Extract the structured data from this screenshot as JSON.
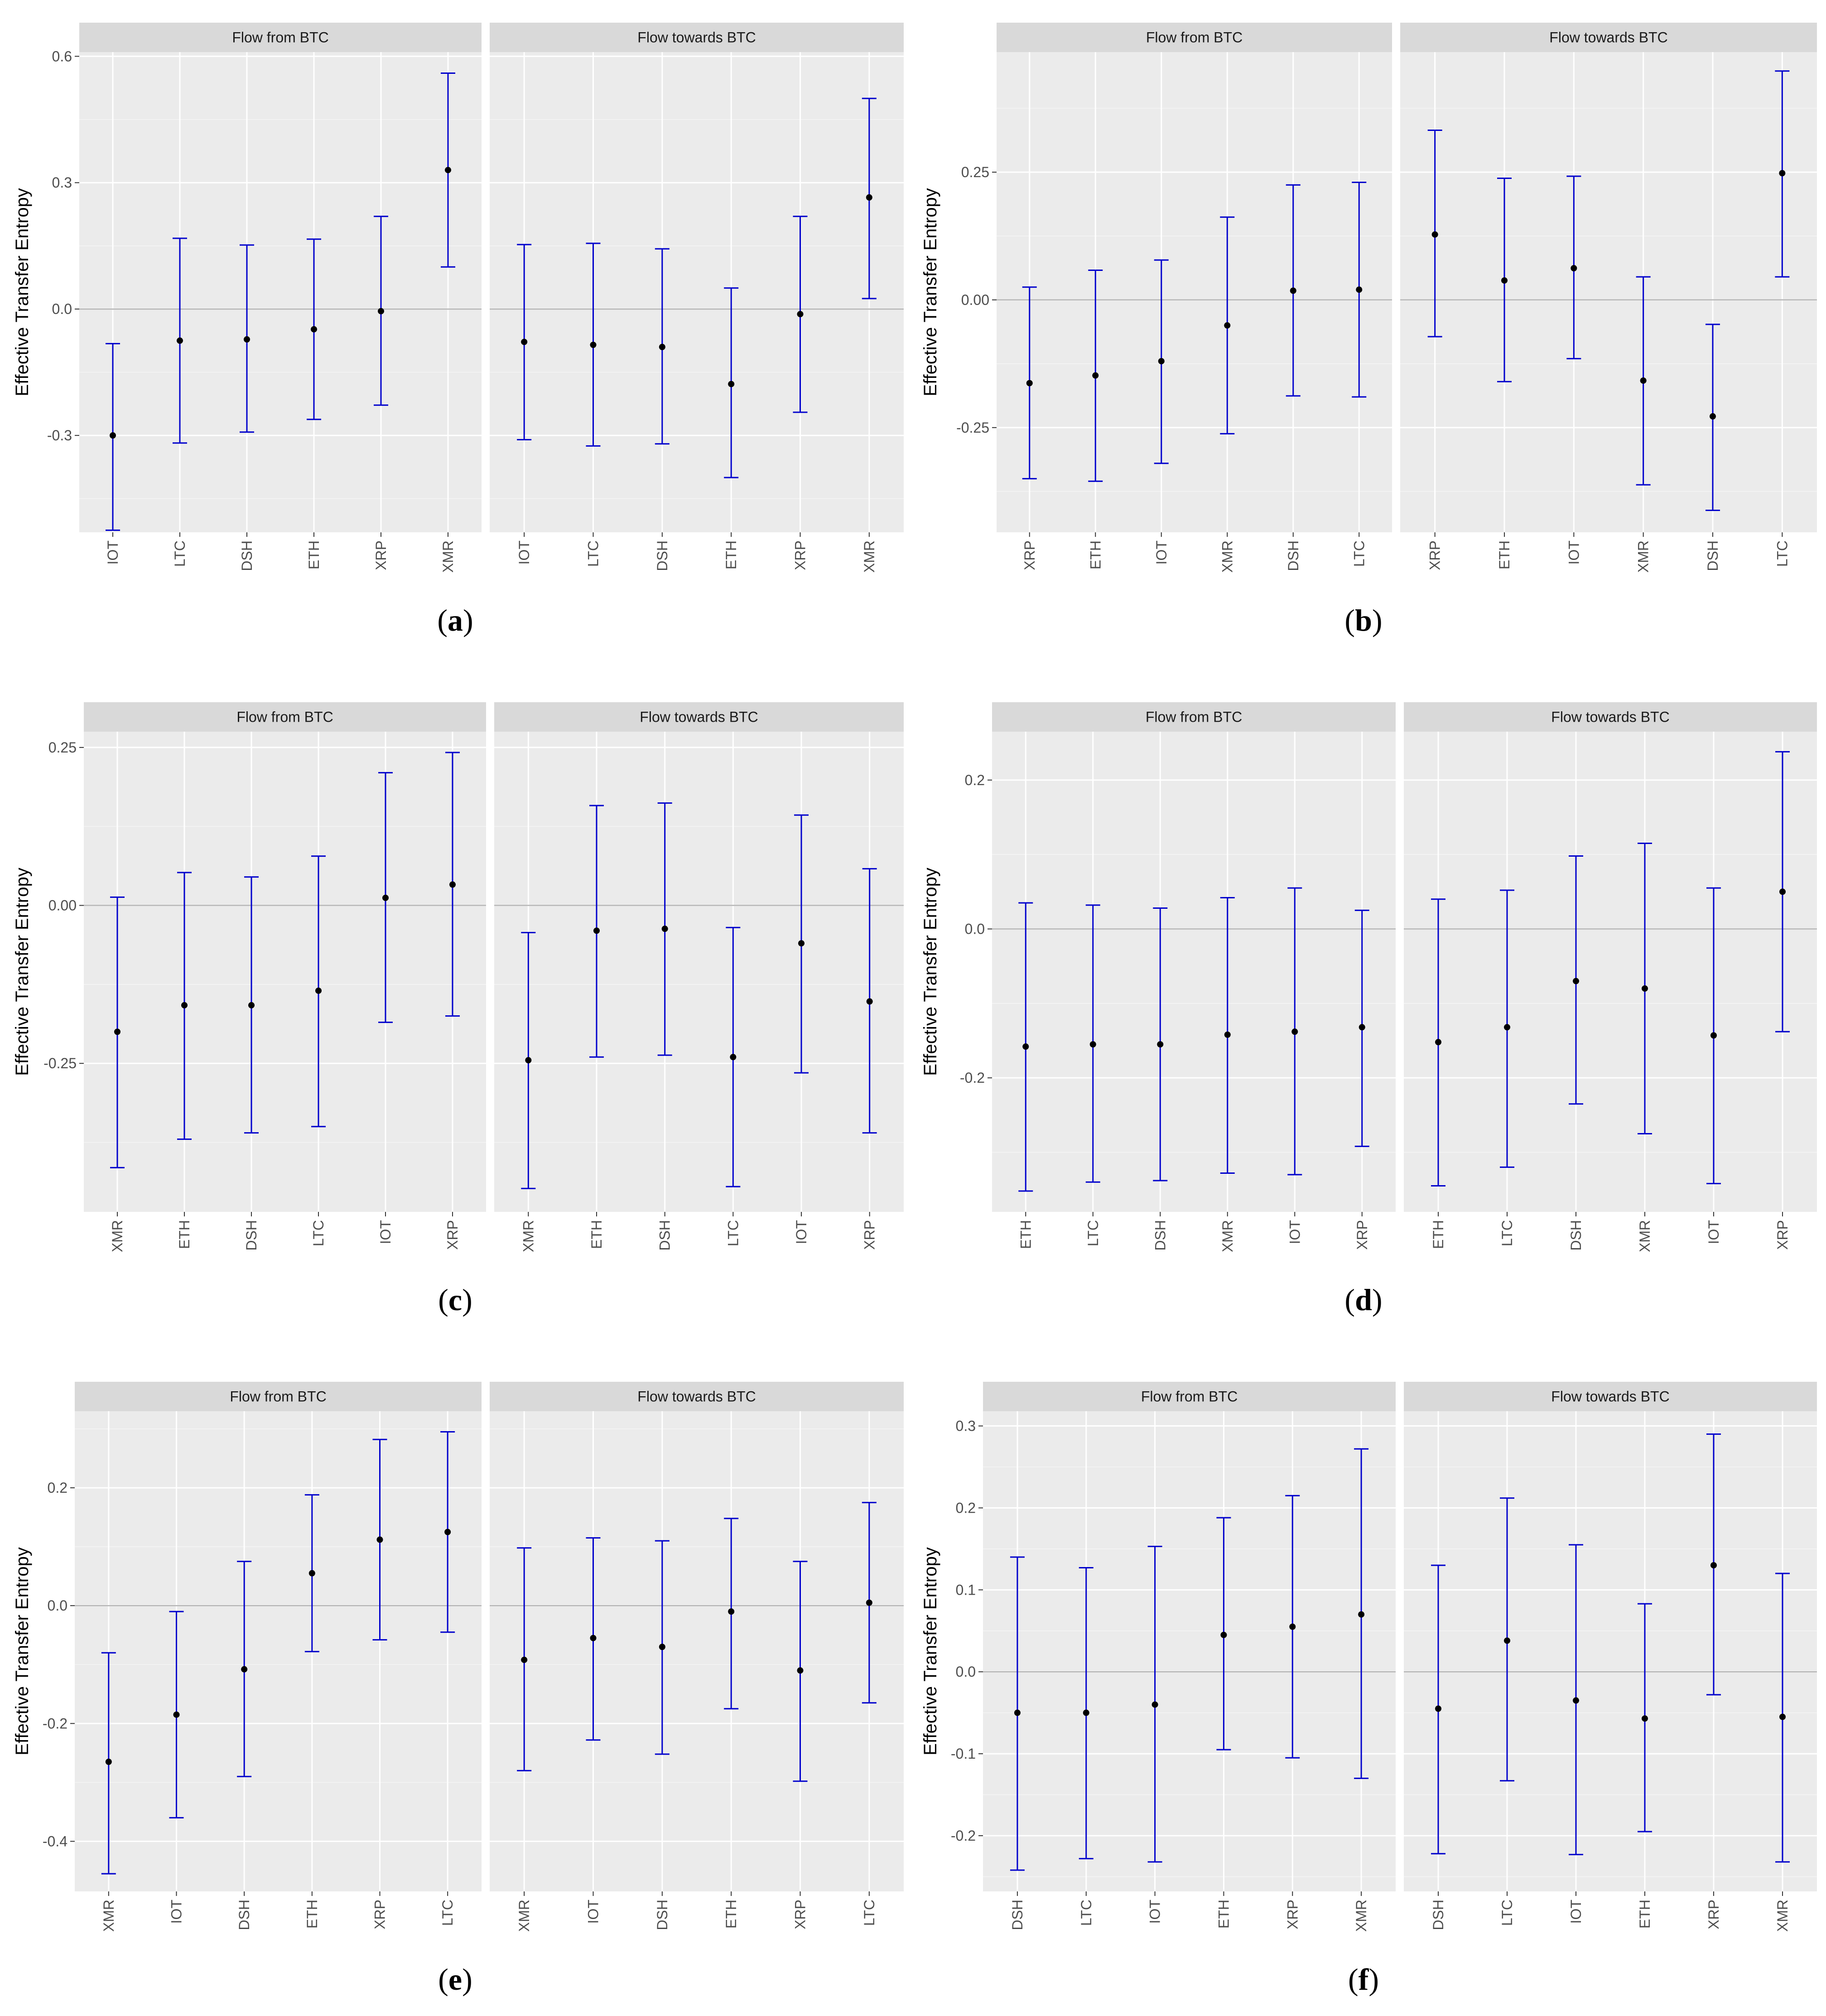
{
  "chart_data": [
    {
      "id": "a",
      "type": "errorbar",
      "caption": "a",
      "ylabel": "Effective Transfer Entropy",
      "ylim": [
        -0.53,
        0.61
      ],
      "yticks": [
        -0.3,
        0.0,
        0.3,
        0.6
      ],
      "yticklabels": [
        "-0.3",
        "0.0",
        "0.3",
        "0.6"
      ],
      "ref_line": 0,
      "panels": [
        {
          "title": "Flow from BTC",
          "categories": [
            "IOT",
            "LTC",
            "DSH",
            "ETH",
            "XRP",
            "XMR"
          ],
          "est": [
            -0.3,
            -0.075,
            -0.072,
            -0.048,
            -0.005,
            0.33
          ],
          "lo": [
            -0.525,
            -0.318,
            -0.292,
            -0.262,
            -0.228,
            0.1
          ],
          "hi": [
            -0.082,
            0.168,
            0.152,
            0.166,
            0.22,
            0.56
          ]
        },
        {
          "title": "Flow towards BTC",
          "categories": [
            "IOT",
            "LTC",
            "DSH",
            "ETH",
            "XRP",
            "XMR"
          ],
          "est": [
            -0.078,
            -0.085,
            -0.09,
            -0.178,
            -0.012,
            0.265
          ],
          "lo": [
            -0.31,
            -0.325,
            -0.32,
            -0.4,
            -0.245,
            0.025
          ],
          "hi": [
            0.153,
            0.156,
            0.143,
            0.05,
            0.22,
            0.5
          ]
        }
      ]
    },
    {
      "id": "b",
      "type": "errorbar",
      "caption": "b",
      "ylabel": "Effective Transfer Entropy",
      "ylim": [
        -0.455,
        0.485
      ],
      "yticks": [
        -0.25,
        0.0,
        0.25
      ],
      "yticklabels": [
        "-0.25",
        "0.00",
        "0.25"
      ],
      "ref_line": 0,
      "panels": [
        {
          "title": "Flow from BTC",
          "categories": [
            "XRP",
            "ETH",
            "IOT",
            "XMR",
            "DSH",
            "LTC"
          ],
          "est": [
            -0.163,
            -0.148,
            -0.12,
            -0.05,
            0.018,
            0.02
          ],
          "lo": [
            -0.35,
            -0.355,
            -0.32,
            -0.262,
            -0.188,
            -0.19
          ],
          "hi": [
            0.025,
            0.058,
            0.078,
            0.162,
            0.225,
            0.23
          ]
        },
        {
          "title": "Flow towards BTC",
          "categories": [
            "XRP",
            "ETH",
            "IOT",
            "XMR",
            "DSH",
            "LTC"
          ],
          "est": [
            0.128,
            0.038,
            0.062,
            -0.158,
            -0.228,
            0.248
          ],
          "lo": [
            -0.072,
            -0.16,
            -0.115,
            -0.362,
            -0.412,
            0.045
          ],
          "hi": [
            0.332,
            0.238,
            0.242,
            0.045,
            -0.048,
            0.448
          ]
        }
      ]
    },
    {
      "id": "c",
      "type": "errorbar",
      "caption": "c",
      "ylabel": "Effective Transfer Entropy",
      "ylim": [
        -0.485,
        0.275
      ],
      "yticks": [
        -0.25,
        0.0,
        0.25
      ],
      "yticklabels": [
        "-0.25",
        "0.00",
        "0.25"
      ],
      "ref_line": 0,
      "panels": [
        {
          "title": "Flow from BTC",
          "categories": [
            "XMR",
            "ETH",
            "DSH",
            "LTC",
            "IOT",
            "XRP"
          ],
          "est": [
            -0.2,
            -0.158,
            -0.158,
            -0.135,
            0.012,
            0.033
          ],
          "lo": [
            -0.415,
            -0.37,
            -0.36,
            -0.35,
            -0.185,
            -0.175
          ],
          "hi": [
            0.013,
            0.052,
            0.045,
            0.078,
            0.21,
            0.242
          ]
        },
        {
          "title": "Flow towards BTC",
          "categories": [
            "XMR",
            "ETH",
            "DSH",
            "LTC",
            "IOT",
            "XRP"
          ],
          "est": [
            -0.245,
            -0.04,
            -0.037,
            -0.24,
            -0.06,
            -0.152
          ],
          "lo": [
            -0.448,
            -0.24,
            -0.237,
            -0.445,
            -0.265,
            -0.36
          ],
          "hi": [
            -0.043,
            0.158,
            0.162,
            -0.035,
            0.143,
            0.058
          ]
        }
      ]
    },
    {
      "id": "d",
      "type": "errorbar",
      "caption": "d",
      "ylabel": "Effective Transfer Entropy",
      "ylim": [
        -0.38,
        0.265
      ],
      "yticks": [
        -0.2,
        0.0,
        0.2
      ],
      "yticklabels": [
        "-0.2",
        "0.0",
        "0.2"
      ],
      "ref_line": 0,
      "panels": [
        {
          "title": "Flow from BTC",
          "categories": [
            "ETH",
            "LTC",
            "DSH",
            "XMR",
            "IOT",
            "XRP"
          ],
          "est": [
            -0.158,
            -0.155,
            -0.155,
            -0.142,
            -0.138,
            -0.132
          ],
          "lo": [
            -0.352,
            -0.34,
            -0.338,
            -0.328,
            -0.33,
            -0.292
          ],
          "hi": [
            0.035,
            0.032,
            0.028,
            0.042,
            0.055,
            0.025
          ]
        },
        {
          "title": "Flow towards BTC",
          "categories": [
            "ETH",
            "LTC",
            "DSH",
            "XMR",
            "IOT",
            "XRP"
          ],
          "est": [
            -0.152,
            -0.132,
            -0.07,
            -0.08,
            -0.143,
            0.05
          ],
          "lo": [
            -0.345,
            -0.32,
            -0.235,
            -0.275,
            -0.342,
            -0.138
          ],
          "hi": [
            0.04,
            0.052,
            0.098,
            0.115,
            0.055,
            0.238
          ]
        }
      ]
    },
    {
      "id": "e",
      "type": "errorbar",
      "caption": "e",
      "ylabel": "Effective Transfer Entropy",
      "ylim": [
        -0.485,
        0.33
      ],
      "yticks": [
        -0.4,
        -0.2,
        0.0,
        0.2
      ],
      "yticklabels": [
        "-0.4",
        "-0.2",
        "0.0",
        "0.2"
      ],
      "ref_line": 0,
      "panels": [
        {
          "title": "Flow from BTC",
          "categories": [
            "XMR",
            "IOT",
            "DSH",
            "ETH",
            "XRP",
            "LTC"
          ],
          "est": [
            -0.265,
            -0.185,
            -0.108,
            0.055,
            0.112,
            0.125
          ],
          "lo": [
            -0.455,
            -0.36,
            -0.29,
            -0.078,
            -0.058,
            -0.045
          ],
          "hi": [
            -0.08,
            -0.01,
            0.075,
            0.188,
            0.282,
            0.295
          ]
        },
        {
          "title": "Flow towards BTC",
          "categories": [
            "XMR",
            "IOT",
            "DSH",
            "ETH",
            "XRP",
            "LTC"
          ],
          "est": [
            -0.092,
            -0.055,
            -0.07,
            -0.01,
            -0.11,
            0.005
          ],
          "lo": [
            -0.28,
            -0.228,
            -0.252,
            -0.175,
            -0.298,
            -0.165
          ],
          "hi": [
            0.098,
            0.115,
            0.11,
            0.148,
            0.075,
            0.175
          ]
        }
      ]
    },
    {
      "id": "f",
      "type": "errorbar",
      "caption": "f",
      "ylabel": "Effective Transfer Entropy",
      "ylim": [
        -0.268,
        0.318
      ],
      "yticks": [
        -0.2,
        -0.1,
        0.0,
        0.1,
        0.2,
        0.3
      ],
      "yticklabels": [
        "-0.2",
        "-0.1",
        "0.0",
        "0.1",
        "0.2",
        "0.3"
      ],
      "ref_line": 0,
      "panels": [
        {
          "title": "Flow from BTC",
          "categories": [
            "DSH",
            "LTC",
            "IOT",
            "ETH",
            "XRP",
            "XMR"
          ],
          "est": [
            -0.05,
            -0.05,
            -0.04,
            0.045,
            0.055,
            0.07
          ],
          "lo": [
            -0.242,
            -0.228,
            -0.232,
            -0.095,
            -0.105,
            -0.13
          ],
          "hi": [
            0.14,
            0.127,
            0.153,
            0.188,
            0.215,
            0.272
          ]
        },
        {
          "title": "Flow towards BTC",
          "categories": [
            "DSH",
            "LTC",
            "IOT",
            "ETH",
            "XRP",
            "XMR"
          ],
          "est": [
            -0.045,
            0.038,
            -0.035,
            -0.057,
            0.13,
            -0.055
          ],
          "lo": [
            -0.222,
            -0.133,
            -0.223,
            -0.195,
            -0.028,
            -0.232
          ],
          "hi": [
            0.13,
            0.212,
            0.155,
            0.083,
            0.29,
            0.12
          ]
        }
      ]
    }
  ],
  "style": {
    "panel_bg": "#ebebeb",
    "strip_bg": "#d9d9d9",
    "grid_major": "#ffffff",
    "grid_minor": "#f5f5f5",
    "ref_line_color": "#b3b3b3",
    "errorbar_color": "#0000cc",
    "point_color": "#000000"
  }
}
